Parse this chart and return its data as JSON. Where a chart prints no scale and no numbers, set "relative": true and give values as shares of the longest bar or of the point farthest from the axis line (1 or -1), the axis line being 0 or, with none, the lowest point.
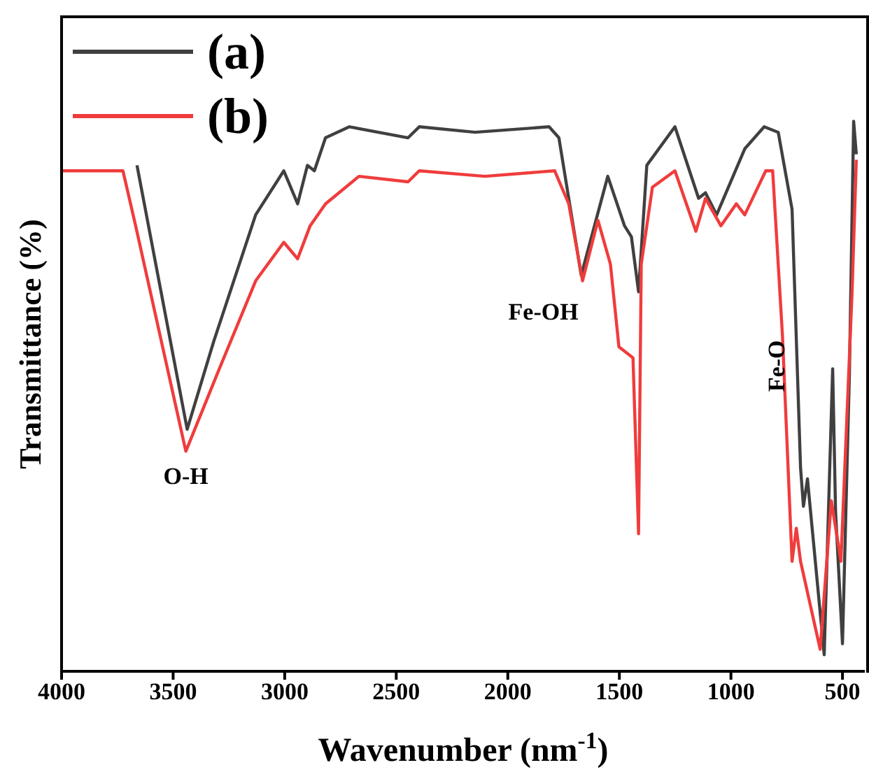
{
  "chart_data": {
    "type": "line",
    "relative": true,
    "xlabel": "Wavenumber (nm$^{-1}$)",
    "ylabel": "Transmittance (%)",
    "xlim": [
      4000,
      400
    ],
    "xticks": [
      4000,
      3500,
      3000,
      2500,
      2000,
      1500,
      1000,
      500
    ],
    "legend": "top left",
    "marker": "none",
    "series": [
      {
        "name": "(a)",
        "color": "#404040",
        "x": [
          3662,
          3437,
          3318,
          3130,
          3004,
          2942,
          2898,
          2867,
          2817,
          2710,
          2447,
          2397,
          2147,
          1815,
          1771,
          1671,
          1552,
          1477,
          1446,
          1414,
          1377,
          1251,
          1145,
          1114,
          1064,
          938,
          851,
          788,
          726,
          688,
          675,
          657,
          582,
          544,
          531,
          500,
          469,
          450,
          438
        ],
        "values": [
          0.92,
          0.44,
          0.6,
          0.83,
          0.91,
          0.85,
          0.92,
          0.91,
          0.97,
          0.99,
          0.97,
          0.99,
          0.98,
          0.99,
          0.97,
          0.72,
          0.9,
          0.81,
          0.79,
          0.69,
          0.92,
          0.99,
          0.86,
          0.87,
          0.83,
          0.95,
          0.99,
          0.98,
          0.84,
          0.37,
          0.3,
          0.35,
          0.03,
          0.55,
          0.29,
          0.05,
          0.54,
          1.0,
          0.94
        ]
      },
      {
        "name": "(b)",
        "color": "#f03c3c",
        "x": [
          4000,
          3725,
          3668,
          3443,
          3293,
          3130,
          3004,
          2942,
          2886,
          2817,
          2667,
          2447,
          2397,
          2103,
          1790,
          1727,
          1665,
          1596,
          1540,
          1502,
          1439,
          1414,
          1402,
          1352,
          1251,
          1157,
          1114,
          1045,
          976,
          938,
          844,
          813,
          769,
          726,
          707,
          688,
          600,
          550,
          507,
          457,
          438
        ],
        "values": [
          0.91,
          0.91,
          0.81,
          0.4,
          0.55,
          0.71,
          0.78,
          0.75,
          0.81,
          0.85,
          0.9,
          0.89,
          0.91,
          0.9,
          0.91,
          0.85,
          0.71,
          0.82,
          0.74,
          0.59,
          0.57,
          0.25,
          0.74,
          0.88,
          0.91,
          0.8,
          0.86,
          0.81,
          0.85,
          0.83,
          0.91,
          0.91,
          0.61,
          0.2,
          0.26,
          0.2,
          0.04,
          0.31,
          0.2,
          0.69,
          0.93
        ]
      }
    ],
    "annotations": [
      {
        "text": "O-H",
        "x": 3443,
        "y": 0.4
      },
      {
        "text": "Fe-OH",
        "x": 1665,
        "y": 0.71
      },
      {
        "text": "Fe-O",
        "x": 544,
        "y": 0.55
      }
    ]
  }
}
